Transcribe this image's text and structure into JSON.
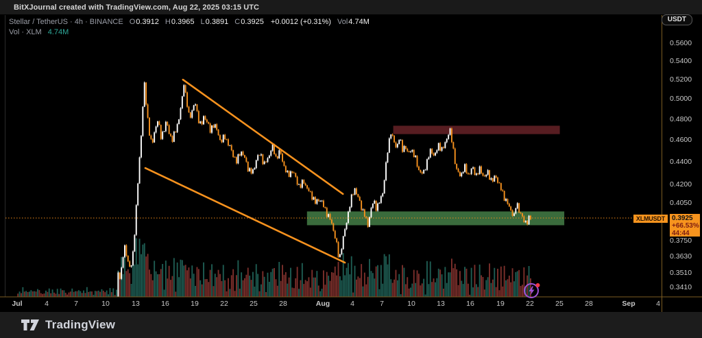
{
  "title_bar": {
    "text": "BitXJournal created with TradingView.com, Aug 22, 2025 03:15 UTC"
  },
  "legend": {
    "title": "Stellar / TetherUS · 4h · BINANCE",
    "ohlc": [
      {
        "k": "O",
        "v": "0.3912"
      },
      {
        "k": "H",
        "v": "0.3965"
      },
      {
        "k": "L",
        "v": "0.3891"
      },
      {
        "k": "C",
        "v": "0.3925"
      }
    ],
    "change": "+0.0012 (+0.31%)",
    "vol_label": "Vol",
    "vol_value": "4.74M",
    "indicator_label": "Vol · XLM",
    "indicator_value": "4.74M"
  },
  "toolbar": {
    "currency_button": "USDT"
  },
  "price_axis": {
    "ticks": [
      {
        "label": "0.5600",
        "value": 0.56
      },
      {
        "label": "0.5400",
        "value": 0.54
      },
      {
        "label": "0.5200",
        "value": 0.52
      },
      {
        "label": "0.5000",
        "value": 0.5
      },
      {
        "label": "0.4800",
        "value": 0.48
      },
      {
        "label": "0.4600",
        "value": 0.46
      },
      {
        "label": "0.4400",
        "value": 0.44
      },
      {
        "label": "0.4200",
        "value": 0.42
      },
      {
        "label": "0.4050",
        "value": 0.405
      },
      {
        "label": "0.3750",
        "value": 0.375
      },
      {
        "label": "0.3630",
        "value": 0.363
      },
      {
        "label": "0.3510",
        "value": 0.351
      },
      {
        "label": "0.3410",
        "value": 0.341
      }
    ],
    "badge": {
      "price": "0.3925",
      "change_pct": "+66.53%",
      "countdown": "44:44"
    },
    "tag": "XLMUSDT"
  },
  "time_axis": {
    "ticks": [
      {
        "label": "Jul",
        "day": 0,
        "bold": true
      },
      {
        "label": "4",
        "day": 3
      },
      {
        "label": "7",
        "day": 6
      },
      {
        "label": "10",
        "day": 9
      },
      {
        "label": "13",
        "day": 12
      },
      {
        "label": "16",
        "day": 15
      },
      {
        "label": "19",
        "day": 18
      },
      {
        "label": "22",
        "day": 21
      },
      {
        "label": "25",
        "day": 24
      },
      {
        "label": "28",
        "day": 27
      },
      {
        "label": "Aug",
        "day": 31,
        "bold": true
      },
      {
        "label": "4",
        "day": 34
      },
      {
        "label": "7",
        "day": 37
      },
      {
        "label": "10",
        "day": 40
      },
      {
        "label": "13",
        "day": 43
      },
      {
        "label": "16",
        "day": 46
      },
      {
        "label": "19",
        "day": 49
      },
      {
        "label": "22",
        "day": 52
      },
      {
        "label": "25",
        "day": 55
      },
      {
        "label": "28",
        "day": 58
      },
      {
        "label": "Sep",
        "day": 62,
        "bold": true
      },
      {
        "label": "4",
        "day": 65
      }
    ]
  },
  "footer": {
    "brand": "TradingView"
  },
  "colors": {
    "background": "#000000",
    "candle_up": "#ffffff",
    "candle_down": "#f7921e",
    "volume_up": "#1e5c52",
    "volume_down": "#7b2f2b",
    "trendline": "#f7921e",
    "resistance_zone": "#571d21",
    "support_zone": "#3a6b3c",
    "price_line": "#ef8a1a",
    "axis_border": "#7c5c22",
    "pane_border": "#2b2b2b",
    "badge_bg": "#f7941e",
    "icon_purple": "#a052d6",
    "icon_dot_red": "#f23645"
  },
  "chart_data": {
    "type": "candlestick",
    "title": "Stellar / TetherUS, 4h, BINANCE (XLMUSDT) with volume overlay",
    "x_axis": "Date, Jul 1 - Sep 4 2025, 4-hour candles (data ends Aug 22 03:15 UTC)",
    "y_axis": "Price in USDT (log scale)",
    "ylim": [
      0.336,
      0.574
    ],
    "xlim_days": [
      0,
      65.5
    ],
    "grid": false,
    "last_candle": {
      "open": 0.3912,
      "high": 0.3965,
      "low": 0.3891,
      "close": 0.3925,
      "change": "+0.0012",
      "change_pct": "+0.31%",
      "volume": "4.74M"
    },
    "price_path_day_close": [
      [
        0,
        0.3295
      ],
      [
        1.5,
        0.331
      ],
      [
        3,
        0.3292
      ],
      [
        4.5,
        0.3315
      ],
      [
        6,
        0.33
      ],
      [
        7.5,
        0.332
      ],
      [
        9,
        0.3305
      ],
      [
        10.2,
        0.333
      ],
      [
        10.37,
        0.356
      ],
      [
        10.55,
        0.346
      ],
      [
        10.8,
        0.362
      ],
      [
        11.05,
        0.371
      ],
      [
        11.3,
        0.36
      ],
      [
        11.6,
        0.3525
      ],
      [
        11.85,
        0.367
      ],
      [
        12.1,
        0.392
      ],
      [
        12.35,
        0.424
      ],
      [
        12.6,
        0.455
      ],
      [
        12.8,
        0.488
      ],
      [
        13.0,
        0.5145
      ],
      [
        13.2,
        0.492
      ],
      [
        13.45,
        0.47
      ],
      [
        13.75,
        0.4535
      ],
      [
        14.05,
        0.47
      ],
      [
        14.35,
        0.479
      ],
      [
        14.65,
        0.463
      ],
      [
        14.95,
        0.469
      ],
      [
        15.25,
        0.477
      ],
      [
        15.55,
        0.4655
      ],
      [
        15.85,
        0.459
      ],
      [
        16.15,
        0.47
      ],
      [
        16.45,
        0.4775
      ],
      [
        16.75,
        0.494
      ],
      [
        17.0,
        0.5175
      ],
      [
        17.25,
        0.498
      ],
      [
        17.55,
        0.481
      ],
      [
        17.85,
        0.489
      ],
      [
        18.15,
        0.4955
      ],
      [
        18.45,
        0.481
      ],
      [
        18.75,
        0.4725
      ],
      [
        19.05,
        0.4835
      ],
      [
        19.35,
        0.4775
      ],
      [
        19.65,
        0.468
      ],
      [
        19.95,
        0.4755
      ],
      [
        20.35,
        0.4695
      ],
      [
        20.75,
        0.458
      ],
      [
        21.15,
        0.4635
      ],
      [
        21.55,
        0.4555
      ],
      [
        21.95,
        0.4475
      ],
      [
        22.35,
        0.4395
      ],
      [
        22.75,
        0.4505
      ],
      [
        23.15,
        0.4435
      ],
      [
        23.55,
        0.4335
      ],
      [
        23.95,
        0.4295
      ],
      [
        24.35,
        0.4425
      ],
      [
        24.75,
        0.4475
      ],
      [
        25.15,
        0.4375
      ],
      [
        25.55,
        0.4435
      ],
      [
        25.95,
        0.4545
      ],
      [
        26.35,
        0.4435
      ],
      [
        26.75,
        0.4495
      ],
      [
        27.15,
        0.4365
      ],
      [
        27.55,
        0.4275
      ],
      [
        27.95,
        0.4325
      ],
      [
        28.35,
        0.4255
      ],
      [
        28.75,
        0.4175
      ],
      [
        29.15,
        0.4235
      ],
      [
        29.55,
        0.4155
      ],
      [
        29.95,
        0.4115
      ],
      [
        30.35,
        0.4045
      ],
      [
        30.75,
        0.4085
      ],
      [
        31.15,
        0.4025
      ],
      [
        31.55,
        0.3955
      ],
      [
        31.95,
        0.3895
      ],
      [
        32.35,
        0.3775
      ],
      [
        32.75,
        0.3605
      ],
      [
        33.05,
        0.3725
      ],
      [
        33.35,
        0.3835
      ],
      [
        33.7,
        0.3985
      ],
      [
        34.0,
        0.4085
      ],
      [
        34.3,
        0.4175
      ],
      [
        34.6,
        0.4105
      ],
      [
        34.95,
        0.4025
      ],
      [
        35.3,
        0.3955
      ],
      [
        35.65,
        0.3865
      ],
      [
        35.95,
        0.3985
      ],
      [
        36.25,
        0.4065
      ],
      [
        36.55,
        0.4005
      ],
      [
        36.85,
        0.4055
      ],
      [
        37.15,
        0.4125
      ],
      [
        37.45,
        0.4335
      ],
      [
        37.75,
        0.4555
      ],
      [
        38.0,
        0.4685
      ],
      [
        38.25,
        0.459
      ],
      [
        38.55,
        0.4525
      ],
      [
        38.85,
        0.4625
      ],
      [
        39.15,
        0.4505
      ],
      [
        39.45,
        0.4555
      ],
      [
        39.75,
        0.4455
      ],
      [
        40.05,
        0.4525
      ],
      [
        40.45,
        0.4435
      ],
      [
        40.85,
        0.4325
      ],
      [
        41.25,
        0.4285
      ],
      [
        41.65,
        0.4405
      ],
      [
        42.05,
        0.4505
      ],
      [
        42.45,
        0.4455
      ],
      [
        42.85,
        0.4555
      ],
      [
        43.25,
        0.4505
      ],
      [
        43.6,
        0.4595
      ],
      [
        43.95,
        0.4705
      ],
      [
        44.3,
        0.4525
      ],
      [
        44.65,
        0.4325
      ],
      [
        45.05,
        0.4275
      ],
      [
        45.45,
        0.4355
      ],
      [
        45.85,
        0.4285
      ],
      [
        46.25,
        0.4345
      ],
      [
        46.65,
        0.4285
      ],
      [
        47.05,
        0.4335
      ],
      [
        47.45,
        0.4265
      ],
      [
        47.85,
        0.4305
      ],
      [
        48.25,
        0.4225
      ],
      [
        48.65,
        0.4275
      ],
      [
        49.05,
        0.4185
      ],
      [
        49.45,
        0.4105
      ],
      [
        49.85,
        0.4035
      ],
      [
        50.2,
        0.3985
      ],
      [
        50.5,
        0.3935
      ],
      [
        50.75,
        0.4055
      ],
      [
        51.1,
        0.3965
      ],
      [
        51.45,
        0.3905
      ],
      [
        51.8,
        0.3892
      ],
      [
        52.12,
        0.3925
      ]
    ],
    "annotations": {
      "descending_channel": {
        "upper_line_day_price": [
          [
            16.82,
            0.52
          ],
          [
            33.05,
            0.4122
          ]
        ],
        "lower_line_day_price": [
          [
            13.0,
            0.4345
          ],
          [
            33.25,
            0.3585
          ]
        ]
      },
      "resistance_zone": {
        "day_start": 38.15,
        "day_end": 55.05,
        "price_top": 0.4735,
        "price_bottom": 0.4655
      },
      "support_zone": {
        "day_start": 29.4,
        "day_end": 55.5,
        "price_top": 0.3978,
        "price_bottom": 0.3868
      },
      "current_price_line": 0.3925
    }
  }
}
